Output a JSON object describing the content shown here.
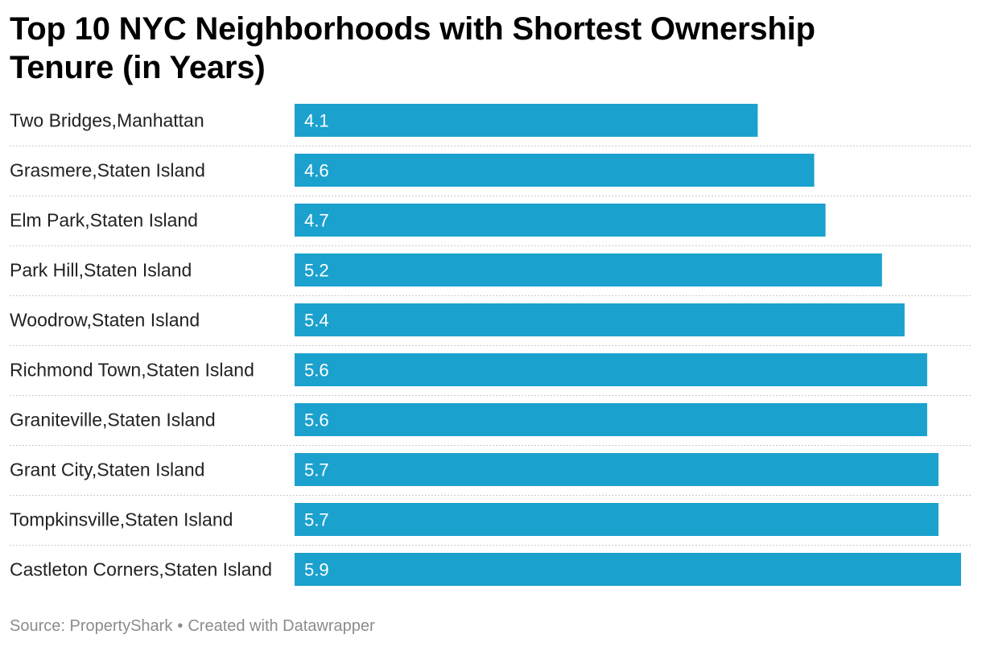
{
  "chart_data": {
    "type": "bar",
    "orientation": "horizontal",
    "title": "Top 10 NYC Neighborhoods with Shortest Ownership Tenure  (in Years)",
    "categories": [
      "Two Bridges,Manhattan",
      "Grasmere,Staten Island",
      "Elm Park,Staten Island",
      "Park Hill,Staten Island",
      "Woodrow,Staten Island",
      "Richmond Town,Staten Island",
      "Graniteville,Staten Island",
      "Grant City,Staten Island",
      "Tompkinsville,Staten Island",
      "Castleton Corners,Staten Island"
    ],
    "values": [
      4.1,
      4.6,
      4.7,
      5.2,
      5.4,
      5.6,
      5.6,
      5.7,
      5.7,
      5.9
    ],
    "value_labels": [
      "4.1",
      "4.6",
      "4.7",
      "5.2",
      "5.4",
      "5.6",
      "5.6",
      "5.7",
      "5.7",
      "5.9"
    ],
    "xlim": [
      0,
      5.9
    ],
    "grid": false,
    "bar_color": "#1ba1cd",
    "separator_color": "#cccccc"
  },
  "footer": {
    "source": "Source: PropertyShark",
    "separator": "•",
    "credit": "Created with Datawrapper"
  }
}
